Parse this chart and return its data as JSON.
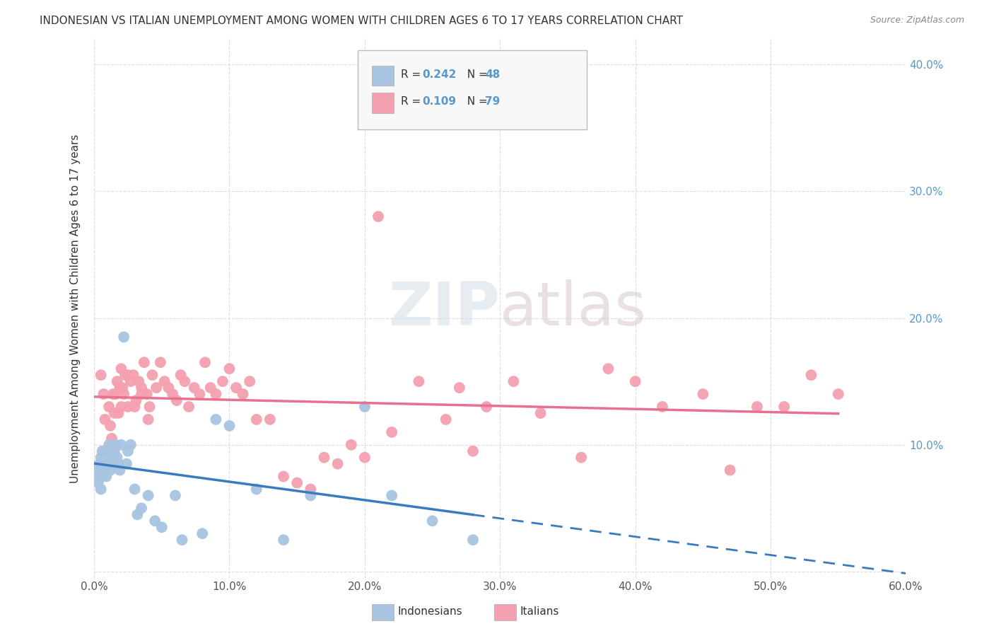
{
  "title": "INDONESIAN VS ITALIAN UNEMPLOYMENT AMONG WOMEN WITH CHILDREN AGES 6 TO 17 YEARS CORRELATION CHART",
  "source": "Source: ZipAtlas.com",
  "ylabel": "Unemployment Among Women with Children Ages 6 to 17 years",
  "xlim": [
    0.0,
    0.6
  ],
  "ylim": [
    -0.005,
    0.42
  ],
  "xticks": [
    0.0,
    0.1,
    0.2,
    0.3,
    0.4,
    0.5,
    0.6
  ],
  "yticks": [
    0.0,
    0.1,
    0.2,
    0.3,
    0.4
  ],
  "xtick_labels": [
    "0.0%",
    "10.0%",
    "20.0%",
    "30.0%",
    "40.0%",
    "50.0%",
    "60.0%"
  ],
  "ytick_labels_right": [
    "",
    "10.0%",
    "20.0%",
    "30.0%",
    "40.0%"
  ],
  "background_color": "#ffffff",
  "grid_color": "#dddddd",
  "indonesian_color": "#a8c4e0",
  "italian_color": "#f4a0b0",
  "indonesian_line_color": "#3a7abf",
  "italian_line_color": "#e87090",
  "watermark_zip": "ZIP",
  "watermark_atlas": "atlas",
  "R_indonesian": "0.242",
  "N_indonesian": "48",
  "R_italian": "0.109",
  "N_italian": "79",
  "indonesian_x": [
    0.001,
    0.002,
    0.003,
    0.004,
    0.005,
    0.005,
    0.006,
    0.006,
    0.007,
    0.008,
    0.008,
    0.009,
    0.009,
    0.01,
    0.01,
    0.011,
    0.012,
    0.012,
    0.013,
    0.014,
    0.015,
    0.016,
    0.017,
    0.018,
    0.019,
    0.02,
    0.022,
    0.024,
    0.025,
    0.027,
    0.03,
    0.032,
    0.035,
    0.04,
    0.045,
    0.05,
    0.06,
    0.065,
    0.08,
    0.09,
    0.1,
    0.12,
    0.14,
    0.16,
    0.2,
    0.22,
    0.25,
    0.28
  ],
  "indonesian_y": [
    0.075,
    0.08,
    0.07,
    0.085,
    0.065,
    0.09,
    0.075,
    0.095,
    0.08,
    0.085,
    0.095,
    0.075,
    0.09,
    0.095,
    0.085,
    0.1,
    0.08,
    0.095,
    0.085,
    0.09,
    0.095,
    0.1,
    0.09,
    0.085,
    0.08,
    0.1,
    0.185,
    0.085,
    0.095,
    0.1,
    0.065,
    0.045,
    0.05,
    0.06,
    0.04,
    0.035,
    0.06,
    0.025,
    0.03,
    0.12,
    0.115,
    0.065,
    0.025,
    0.06,
    0.13,
    0.06,
    0.04,
    0.025
  ],
  "italian_x": [
    0.005,
    0.007,
    0.008,
    0.01,
    0.011,
    0.012,
    0.013,
    0.014,
    0.015,
    0.016,
    0.017,
    0.018,
    0.019,
    0.02,
    0.021,
    0.022,
    0.023,
    0.025,
    0.027,
    0.029,
    0.031,
    0.033,
    0.035,
    0.037,
    0.039,
    0.041,
    0.043,
    0.046,
    0.049,
    0.052,
    0.055,
    0.058,
    0.061,
    0.064,
    0.067,
    0.07,
    0.074,
    0.078,
    0.082,
    0.086,
    0.09,
    0.095,
    0.1,
    0.105,
    0.11,
    0.115,
    0.12,
    0.13,
    0.14,
    0.15,
    0.16,
    0.17,
    0.18,
    0.19,
    0.2,
    0.21,
    0.22,
    0.24,
    0.26,
    0.27,
    0.28,
    0.29,
    0.31,
    0.33,
    0.36,
    0.38,
    0.4,
    0.42,
    0.45,
    0.47,
    0.49,
    0.51,
    0.53,
    0.55,
    0.02,
    0.025,
    0.03,
    0.035,
    0.04
  ],
  "italian_y": [
    0.155,
    0.14,
    0.12,
    0.095,
    0.13,
    0.115,
    0.105,
    0.14,
    0.125,
    0.14,
    0.15,
    0.125,
    0.145,
    0.13,
    0.145,
    0.14,
    0.155,
    0.13,
    0.15,
    0.155,
    0.135,
    0.15,
    0.145,
    0.165,
    0.14,
    0.13,
    0.155,
    0.145,
    0.165,
    0.15,
    0.145,
    0.14,
    0.135,
    0.155,
    0.15,
    0.13,
    0.145,
    0.14,
    0.165,
    0.145,
    0.14,
    0.15,
    0.16,
    0.145,
    0.14,
    0.15,
    0.12,
    0.12,
    0.075,
    0.07,
    0.065,
    0.09,
    0.085,
    0.1,
    0.09,
    0.28,
    0.11,
    0.15,
    0.12,
    0.145,
    0.095,
    0.13,
    0.15,
    0.125,
    0.09,
    0.16,
    0.15,
    0.13,
    0.14,
    0.08,
    0.13,
    0.13,
    0.155,
    0.14,
    0.16,
    0.155,
    0.13,
    0.14,
    0.12
  ]
}
